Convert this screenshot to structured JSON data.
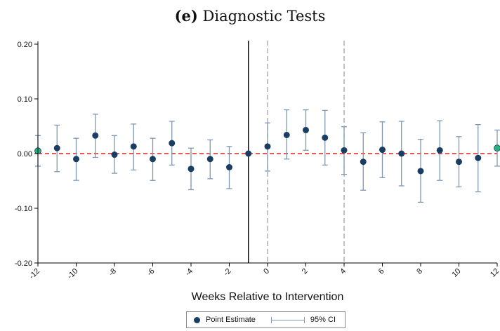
{
  "title_tag": "(e)",
  "title_text": "Diagnostic Tests",
  "chart_data": {
    "type": "scatter",
    "title": "(e) Diagnostic Tests",
    "xlabel": "Weeks Relative to Intervention",
    "ylabel": "",
    "xlim": [
      -12,
      12
    ],
    "ylim": [
      -0.2,
      0.2
    ],
    "x_ticks": [
      -12,
      -10,
      -8,
      -6,
      -4,
      -2,
      0,
      2,
      4,
      6,
      8,
      10,
      12
    ],
    "x_tick_labels": [
      "-12",
      "-10",
      "-8",
      "-6",
      "-4",
      "-2",
      "0",
      "2",
      "4",
      "6",
      "8",
      "10",
      "12"
    ],
    "y_ticks": [
      -0.2,
      -0.1,
      0.0,
      0.1,
      0.2
    ],
    "y_tick_labels": [
      "-0.20",
      "-0.10",
      "0.00",
      "0.10",
      "0.20"
    ],
    "reference_line_y": 0,
    "solid_vline_x": -1,
    "dashed_vlines_x": [
      0,
      4
    ],
    "colors": {
      "point": "#1a3e63",
      "endpoint": "#2bb07f",
      "ci": "#7f98b0",
      "zero_line": "#e0201b",
      "dashed": "#9a9a9a",
      "solid": "#000000"
    },
    "series": [
      {
        "name": "Point Estimate",
        "x": [
          -12,
          -11,
          -10,
          -9,
          -8,
          -7,
          -6,
          -5,
          -4,
          -3,
          -2,
          -1,
          0,
          1,
          2,
          3,
          4,
          5,
          6,
          7,
          8,
          9,
          10,
          11,
          12
        ],
        "y": [
          0.005,
          0.01,
          -0.01,
          0.033,
          -0.002,
          0.013,
          -0.01,
          0.019,
          -0.028,
          -0.01,
          -0.025,
          0.0,
          0.013,
          0.034,
          0.043,
          0.029,
          0.006,
          -0.015,
          0.007,
          0.0,
          -0.032,
          0.006,
          -0.015,
          -0.008,
          0.01
        ]
      },
      {
        "name": "95% CI",
        "lower": [
          -0.023,
          -0.033,
          -0.049,
          -0.007,
          -0.036,
          -0.03,
          -0.049,
          -0.021,
          -0.066,
          -0.046,
          -0.064,
          0.0,
          -0.032,
          -0.01,
          0.006,
          -0.021,
          -0.038,
          -0.067,
          -0.044,
          -0.059,
          -0.089,
          -0.049,
          -0.061,
          -0.07,
          -0.023
        ],
        "upper": [
          0.033,
          0.052,
          0.028,
          0.072,
          0.033,
          0.054,
          0.028,
          0.059,
          0.01,
          0.025,
          0.013,
          0.0,
          0.056,
          0.08,
          0.08,
          0.079,
          0.049,
          0.038,
          0.058,
          0.059,
          0.026,
          0.06,
          0.031,
          0.053,
          0.043
        ]
      }
    ],
    "highlight_points_x": [
      -12,
      12
    ],
    "legend": {
      "position": "bottom-center",
      "entries": [
        "Point Estimate",
        "95% CI"
      ]
    }
  }
}
